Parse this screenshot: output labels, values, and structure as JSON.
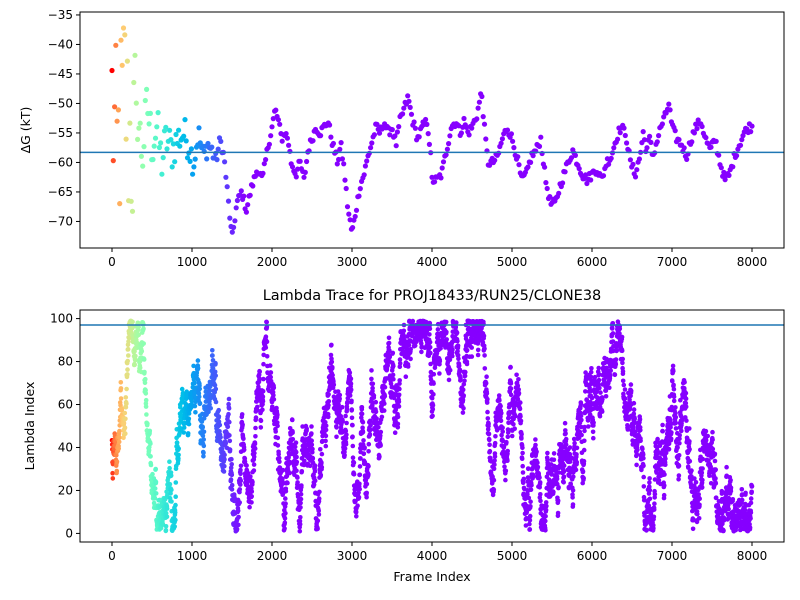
{
  "chart_data": [
    {
      "type": "scatter",
      "title": "",
      "xlabel": "",
      "ylabel": "ΔG (kT)",
      "xlim": [
        -400,
        8400
      ],
      "ylim": [
        -74.5,
        -34.5
      ],
      "xticks": [
        0,
        1000,
        2000,
        3000,
        4000,
        5000,
        6000,
        7000,
        8000
      ],
      "yticks": [
        -35,
        -40,
        -45,
        -50,
        -55,
        -60,
        -65,
        -70
      ],
      "reference_line": {
        "y": -58.3,
        "color": "#1f77b4"
      },
      "colormap": "rainbow (red at early frames to violet at late frames)",
      "grid": false,
      "trace": [
        [
          0,
          -50
        ],
        [
          60,
          -60
        ],
        [
          120,
          -52
        ],
        [
          160,
          -47
        ],
        [
          200,
          -55
        ],
        [
          260,
          -58
        ],
        [
          320,
          -52
        ],
        [
          380,
          -59
        ],
        [
          440,
          -50
        ],
        [
          500,
          -57
        ],
        [
          560,
          -54
        ],
        [
          620,
          -60
        ],
        [
          680,
          -56
        ],
        [
          750,
          -58
        ],
        [
          820,
          -56
        ],
        [
          900,
          -55
        ],
        [
          960,
          -57
        ],
        [
          1020,
          -60
        ],
        [
          1080,
          -55
        ],
        [
          1140,
          -59
        ],
        [
          1200,
          -57
        ],
        [
          1250,
          -58
        ],
        [
          1300,
          -60
        ],
        [
          1350,
          -56
        ],
        [
          1400,
          -59
        ],
        [
          1450,
          -66
        ],
        [
          1500,
          -73
        ],
        [
          1560,
          -67
        ],
        [
          1620,
          -65
        ],
        [
          1680,
          -68
        ],
        [
          1750,
          -64
        ],
        [
          1820,
          -61
        ],
        [
          1880,
          -63
        ],
        [
          1940,
          -58
        ],
        [
          2000,
          -54
        ],
        [
          2040,
          -51
        ],
        [
          2080,
          -53
        ],
        [
          2120,
          -56
        ],
        [
          2160,
          -55
        ],
        [
          2200,
          -56
        ],
        [
          2240,
          -60
        ],
        [
          2300,
          -62
        ],
        [
          2350,
          -60
        ],
        [
          2400,
          -63
        ],
        [
          2450,
          -58
        ],
        [
          2500,
          -56
        ],
        [
          2550,
          -54
        ],
        [
          2600,
          -55
        ],
        [
          2650,
          -54
        ],
        [
          2700,
          -53
        ],
        [
          2760,
          -57
        ],
        [
          2820,
          -60
        ],
        [
          2860,
          -57
        ],
        [
          2900,
          -61
        ],
        [
          2950,
          -68
        ],
        [
          3000,
          -72
        ],
        [
          3050,
          -68
        ],
        [
          3100,
          -64
        ],
        [
          3150,
          -62
        ],
        [
          3200,
          -59
        ],
        [
          3260,
          -56
        ],
        [
          3300,
          -54
        ],
        [
          3350,
          -55
        ],
        [
          3400,
          -53
        ],
        [
          3450,
          -55
        ],
        [
          3500,
          -54
        ],
        [
          3550,
          -57
        ],
        [
          3600,
          -53
        ],
        [
          3650,
          -51
        ],
        [
          3700,
          -49
        ],
        [
          3760,
          -53
        ],
        [
          3820,
          -56
        ],
        [
          3880,
          -54
        ],
        [
          3940,
          -53
        ],
        [
          3980,
          -58
        ],
        [
          4000,
          -63
        ],
        [
          4060,
          -63
        ],
        [
          4120,
          -62
        ],
        [
          4180,
          -58
        ],
        [
          4240,
          -54
        ],
        [
          4300,
          -53
        ],
        [
          4350,
          -55
        ],
        [
          4400,
          -53
        ],
        [
          4450,
          -55
        ],
        [
          4500,
          -54
        ],
        [
          4560,
          -52
        ],
        [
          4620,
          -48
        ],
        [
          4660,
          -55
        ],
        [
          4700,
          -60
        ],
        [
          4760,
          -60
        ],
        [
          4820,
          -59
        ],
        [
          4880,
          -56
        ],
        [
          4940,
          -54
        ],
        [
          5000,
          -56
        ],
        [
          5060,
          -59
        ],
        [
          5120,
          -63
        ],
        [
          5180,
          -62
        ],
        [
          5240,
          -59
        ],
        [
          5300,
          -58
        ],
        [
          5360,
          -56
        ],
        [
          5420,
          -63
        ],
        [
          5480,
          -67
        ],
        [
          5540,
          -67
        ],
        [
          5600,
          -64
        ],
        [
          5650,
          -62
        ],
        [
          5700,
          -60
        ],
        [
          5760,
          -58
        ],
        [
          5820,
          -60
        ],
        [
          5880,
          -62
        ],
        [
          5940,
          -63
        ],
        [
          6000,
          -62
        ],
        [
          6060,
          -61
        ],
        [
          6120,
          -63
        ],
        [
          6180,
          -60
        ],
        [
          6240,
          -59
        ],
        [
          6300,
          -56
        ],
        [
          6360,
          -54
        ],
        [
          6420,
          -55
        ],
        [
          6480,
          -60
        ],
        [
          6540,
          -62
        ],
        [
          6600,
          -59
        ],
        [
          6640,
          -55
        ],
        [
          6680,
          -58
        ],
        [
          6720,
          -56
        ],
        [
          6760,
          -59
        ],
        [
          6800,
          -57
        ],
        [
          6860,
          -54
        ],
        [
          6920,
          -52
        ],
        [
          6960,
          -50
        ],
        [
          7000,
          -54
        ],
        [
          7060,
          -56
        ],
        [
          7120,
          -57
        ],
        [
          7180,
          -59
        ],
        [
          7240,
          -56
        ],
        [
          7300,
          -54
        ],
        [
          7360,
          -53
        ],
        [
          7420,
          -56
        ],
        [
          7480,
          -58
        ],
        [
          7540,
          -56
        ],
        [
          7600,
          -60
        ],
        [
          7660,
          -63
        ],
        [
          7720,
          -62
        ],
        [
          7780,
          -59
        ],
        [
          7840,
          -57
        ],
        [
          7900,
          -55
        ],
        [
          7960,
          -54
        ],
        [
          8000,
          -54
        ]
      ]
    },
    {
      "type": "scatter",
      "title": "Lambda Trace for PROJ18433/RUN25/CLONE38",
      "xlabel": "Frame Index",
      "ylabel": "Lambda Index",
      "xlim": [
        -400,
        8400
      ],
      "ylim": [
        -4,
        104
      ],
      "xticks": [
        0,
        1000,
        2000,
        3000,
        4000,
        5000,
        6000,
        7000,
        8000
      ],
      "yticks": [
        0,
        20,
        40,
        60,
        80,
        100
      ],
      "reference_line": {
        "y": 97,
        "color": "#1f77b4"
      },
      "colormap": "rainbow (red at early frames to violet at late frames)",
      "grid": false,
      "lambda_range": [
        0,
        99
      ],
      "frame_range": [
        0,
        8000
      ]
    }
  ]
}
